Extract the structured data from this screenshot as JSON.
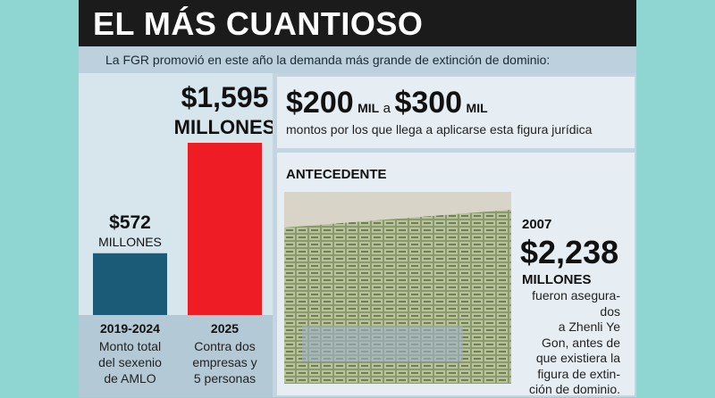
{
  "title": "EL MÁS CUANTIOSO",
  "subtitle": "La FGR promovió en este año la demanda más grande de extinción de dominio:",
  "chart_data": {
    "type": "bar",
    "categories": [
      "2019-2024",
      "2025"
    ],
    "values": [
      572,
      1595
    ],
    "value_labels": [
      "$572",
      "$1,595"
    ],
    "unit": "MILLONES",
    "colors": [
      "#1c5b78",
      "#ee1d25"
    ],
    "descriptions": [
      [
        "Monto total",
        "del sexenio",
        "de AMLO"
      ],
      [
        "Contra dos",
        "empresas y",
        "5 personas"
      ]
    ]
  },
  "range": {
    "from": "$200",
    "from_unit": "MIL",
    "joiner": "a",
    "to": "$300",
    "to_unit": "MIL",
    "caption": "montos por los que llega a aplicarse esta figura jurídica"
  },
  "antecedent": {
    "heading": "ANTECEDENTE",
    "year": "2007",
    "amount": "$2,238",
    "unit": "MILLONES",
    "text_lines": [
      "fueron asegura-",
      "dos",
      "a Zhenli Ye",
      "Gon, antes de",
      "que existiera la",
      "figura de extin-",
      "ción de dominio."
    ]
  }
}
